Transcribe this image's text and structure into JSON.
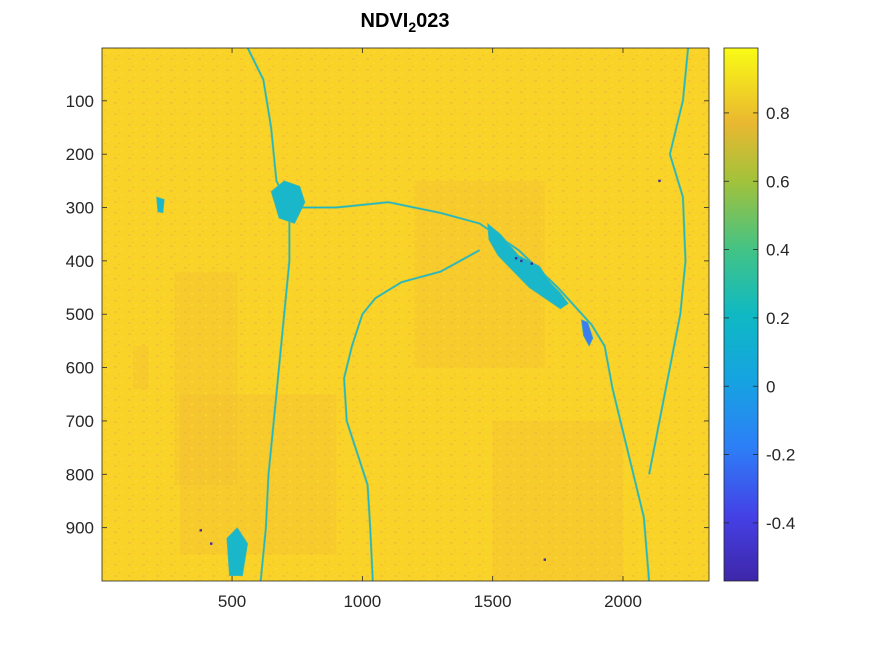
{
  "chart_data": {
    "type": "heatmap",
    "title_main": "NDVI",
    "title_sub": "2",
    "title_rest": "023",
    "x_ticks": [
      500,
      1000,
      1500,
      2000
    ],
    "y_ticks": [
      100,
      200,
      300,
      400,
      500,
      600,
      700,
      800,
      900
    ],
    "xlim": [
      1,
      2330
    ],
    "ylim": [
      1,
      1000
    ],
    "y_reversed": true,
    "colorbar": {
      "ticks": [
        -0.4,
        -0.2,
        0,
        0.2,
        0.4,
        0.6,
        0.8
      ],
      "tick_labels": [
        "-0.4",
        "-0.2",
        "0",
        "0.2",
        "0.4",
        "0.6",
        "0.8"
      ],
      "range": [
        -0.57,
        0.99
      ],
      "colormap": "parula"
    },
    "colors": {
      "background_high": "#f9d327",
      "background_mid": "#f3bd36",
      "vegetation_low": "#4fb9a0",
      "water": "#1ab6c9",
      "water_deep": "#3a7ef0",
      "outlier": "#3d2f9a"
    },
    "regions": [
      {
        "kind": "river",
        "values": 0.25,
        "path": [
          [
            560,
            1
          ],
          [
            620,
            60
          ],
          [
            650,
            150
          ],
          [
            670,
            250
          ],
          [
            720,
            300
          ],
          [
            900,
            300
          ],
          [
            1100,
            290
          ],
          [
            1300,
            310
          ],
          [
            1450,
            330
          ],
          [
            1600,
            380
          ],
          [
            1750,
            450
          ],
          [
            1880,
            520
          ]
        ]
      },
      {
        "kind": "river",
        "values": 0.3,
        "path": [
          [
            1880,
            520
          ],
          [
            1930,
            560
          ],
          [
            1960,
            640
          ],
          [
            2000,
            720
          ],
          [
            2040,
            800
          ],
          [
            2080,
            880
          ],
          [
            2100,
            1000
          ]
        ]
      },
      {
        "kind": "river",
        "values": 0.3,
        "path": [
          [
            1450,
            380
          ],
          [
            1300,
            420
          ],
          [
            1150,
            440
          ],
          [
            1050,
            470
          ],
          [
            1000,
            500
          ],
          [
            960,
            560
          ],
          [
            930,
            620
          ],
          [
            940,
            700
          ],
          [
            980,
            760
          ],
          [
            1020,
            820
          ],
          [
            1030,
            900
          ],
          [
            1040,
            1000
          ]
        ]
      },
      {
        "kind": "river",
        "values": 0.35,
        "path": [
          [
            720,
            300
          ],
          [
            720,
            400
          ],
          [
            700,
            500
          ],
          [
            680,
            600
          ],
          [
            660,
            700
          ],
          [
            640,
            800
          ],
          [
            630,
            900
          ],
          [
            610,
            1000
          ]
        ]
      },
      {
        "kind": "river",
        "values": 0.35,
        "path": [
          [
            2250,
            1
          ],
          [
            2230,
            100
          ],
          [
            2180,
            200
          ],
          [
            2230,
            280
          ],
          [
            2240,
            400
          ],
          [
            2220,
            500
          ],
          [
            2180,
            600
          ],
          [
            2140,
            700
          ],
          [
            2100,
            800
          ]
        ]
      },
      {
        "kind": "reservoir",
        "values": 0.05,
        "path": [
          [
            1480,
            330
          ],
          [
            1530,
            350
          ],
          [
            1600,
            390
          ],
          [
            1680,
            410
          ],
          [
            1720,
            440
          ],
          [
            1760,
            460
          ],
          [
            1790,
            480
          ],
          [
            1760,
            490
          ],
          [
            1700,
            470
          ],
          [
            1640,
            450
          ],
          [
            1580,
            420
          ],
          [
            1520,
            390
          ],
          [
            1485,
            360
          ]
        ]
      },
      {
        "kind": "reservoir_deep",
        "values": -0.2,
        "path": [
          [
            1840,
            510
          ],
          [
            1865,
            515
          ],
          [
            1885,
            545
          ],
          [
            1870,
            560
          ],
          [
            1848,
            540
          ]
        ]
      },
      {
        "kind": "town",
        "values": 0.25,
        "path": [
          [
            650,
            270
          ],
          [
            700,
            250
          ],
          [
            760,
            260
          ],
          [
            780,
            290
          ],
          [
            740,
            330
          ],
          [
            680,
            320
          ]
        ]
      },
      {
        "kind": "town",
        "values": 0.3,
        "path": [
          [
            480,
            920
          ],
          [
            520,
            900
          ],
          [
            560,
            930
          ],
          [
            540,
            990
          ],
          [
            490,
            990
          ]
        ]
      },
      {
        "kind": "pond",
        "values": 0.2,
        "path": [
          [
            210,
            280
          ],
          [
            240,
            285
          ],
          [
            235,
            310
          ],
          [
            215,
            308
          ]
        ]
      }
    ]
  }
}
